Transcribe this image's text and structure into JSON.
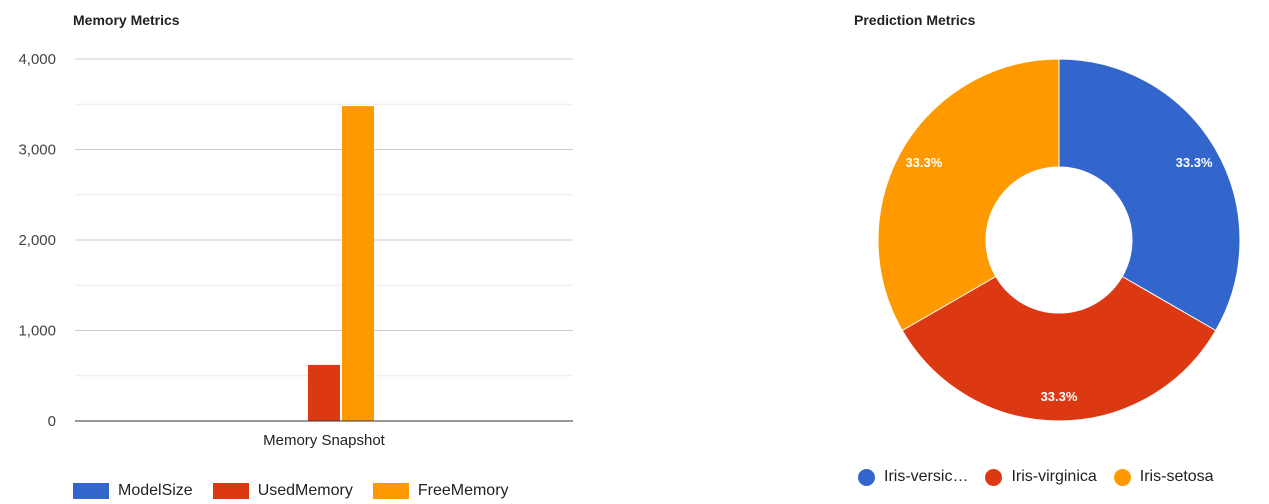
{
  "charts": {
    "memory": {
      "title": "Memory Metrics",
      "colors": [
        "#3366cc",
        "#dc3912",
        "#ff9900"
      ]
    },
    "prediction": {
      "title": "Prediction Metrics",
      "colors": [
        "#3366cc",
        "#dc3912",
        "#ff9900"
      ],
      "legend_labels": [
        "Iris-versic…",
        "Iris-virginica",
        "Iris-setosa"
      ]
    }
  },
  "chart_data": [
    {
      "type": "bar",
      "title": "Memory Metrics",
      "categories": [
        "Memory Snapshot"
      ],
      "series": [
        {
          "name": "ModelSize",
          "values": [
            0
          ]
        },
        {
          "name": "UsedMemory",
          "values": [
            620
          ]
        },
        {
          "name": "FreeMemory",
          "values": [
            3480
          ]
        }
      ],
      "ylim": [
        0,
        4000
      ],
      "yticks": [
        0,
        1000,
        2000,
        3000,
        4000
      ],
      "ytick_labels": [
        "0",
        "1,000",
        "2,000",
        "3,000",
        "4,000"
      ],
      "grid": true,
      "legend_position": "bottom"
    },
    {
      "type": "pie",
      "title": "Prediction Metrics",
      "donut": true,
      "labels": [
        "Iris-versicolor",
        "Iris-virginica",
        "Iris-setosa"
      ],
      "values": [
        1,
        1,
        1
      ],
      "slice_labels": [
        "33.3%",
        "33.3%",
        "33.3%"
      ],
      "legend_position": "bottom"
    }
  ]
}
